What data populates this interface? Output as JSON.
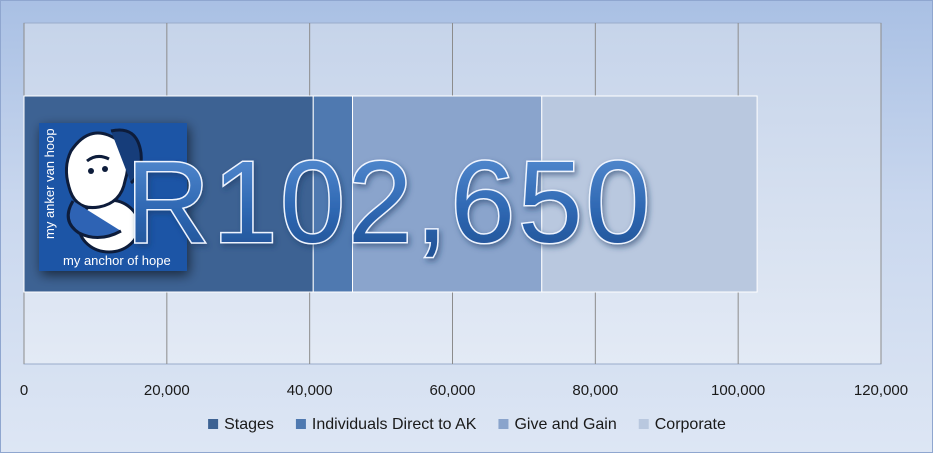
{
  "chart_data": {
    "type": "bar",
    "orientation": "horizontal",
    "stacked": true,
    "categories": [
      ""
    ],
    "series": [
      {
        "name": "Stages",
        "values": [
          40500
        ],
        "color": "#3d6293"
      },
      {
        "name": "Individuals Direct to AK",
        "values": [
          5500
        ],
        "color": "#4f79b0"
      },
      {
        "name": "Give and Gain",
        "values": [
          26500
        ],
        "color": "#8aa4cc"
      },
      {
        "name": "Corporate",
        "values": [
          30150
        ],
        "color": "#b9c8df"
      }
    ],
    "xlim": [
      0,
      120000
    ],
    "xticks": [
      "0",
      "20,000",
      "40,000",
      "60,000",
      "80,000",
      "100,000",
      "120,000"
    ],
    "grid": true,
    "legend_position": "bottom",
    "total_label": "R102,650",
    "logo": {
      "line1": "my anker van hoop",
      "line2": "my anchor of hope"
    }
  }
}
